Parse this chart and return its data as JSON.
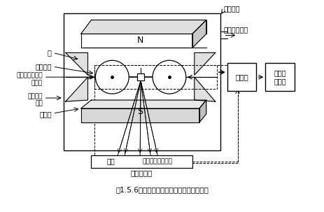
{
  "title": "図1.5.6　ダンベル形磁気力分析計の構成例",
  "bg_color": "#ffffff",
  "line_color": "#000000",
  "labels": {
    "N": "N",
    "S": "S",
    "mirror": "鏡",
    "dumbbell": "ダンベル",
    "feedback_coil": "フィードバック\nコイル",
    "sample_gas_in": "試料ガス\n入口",
    "pole_piece": "磁極片",
    "light_source": "光源",
    "receiver": "受信器（検出器）",
    "displacement": "偏位検出部",
    "amplifier": "増幅器",
    "indicator": "指　示\n記録計",
    "measurement_cell": "測定セル",
    "sample_gas_out": "試料ガス出口"
  }
}
